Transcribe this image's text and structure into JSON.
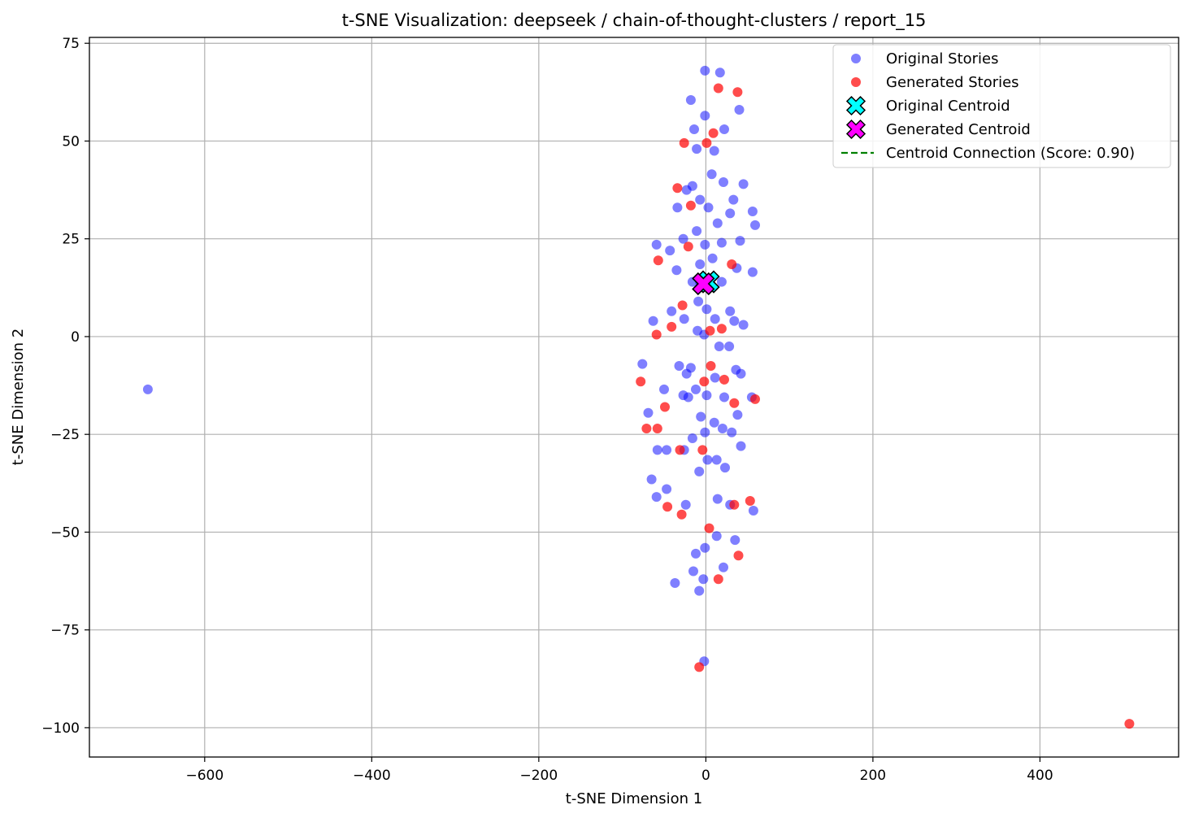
{
  "chart_data": {
    "type": "scatter",
    "title": "t-SNE Visualization: deepseek / chain-of-thought-clusters / report_15",
    "xlabel": "t-SNE Dimension 1",
    "ylabel": "t-SNE Dimension 2",
    "xlim": [
      -738,
      566
    ],
    "ylim": [
      -107.5,
      76.5
    ],
    "xticks": [
      -600,
      -400,
      -200,
      0,
      200,
      400
    ],
    "yticks": [
      -100,
      -75,
      -50,
      -25,
      0,
      25,
      50,
      75
    ],
    "xtick_labels": [
      "−600",
      "−400",
      "−200",
      "0",
      "200",
      "400"
    ],
    "ytick_labels": [
      "−100",
      "−75",
      "−50",
      "−25",
      "0",
      "25",
      "50",
      "75"
    ],
    "grid": true,
    "legend_position": "top-right",
    "series": [
      {
        "name": "Original Stories",
        "color": "#0000ff",
        "points": [
          [
            -1,
            68
          ],
          [
            17,
            67.5
          ],
          [
            -18,
            60.5
          ],
          [
            40,
            58
          ],
          [
            -1,
            56.5
          ],
          [
            -14,
            53
          ],
          [
            22,
            53
          ],
          [
            -11,
            48
          ],
          [
            10,
            47.5
          ],
          [
            7,
            41.5
          ],
          [
            -16,
            38.5
          ],
          [
            21,
            39.5
          ],
          [
            45,
            39
          ],
          [
            -23,
            37.5
          ],
          [
            -7,
            35
          ],
          [
            33,
            35
          ],
          [
            3,
            33
          ],
          [
            -34,
            33
          ],
          [
            56,
            32
          ],
          [
            29,
            31.5
          ],
          [
            14,
            29
          ],
          [
            59,
            28.5
          ],
          [
            -11,
            27
          ],
          [
            -27,
            25
          ],
          [
            41,
            24.5
          ],
          [
            -59,
            23.5
          ],
          [
            19,
            24
          ],
          [
            -1,
            23.5
          ],
          [
            -43,
            22
          ],
          [
            8,
            20
          ],
          [
            -7,
            18.5
          ],
          [
            -35,
            17
          ],
          [
            37,
            17.5
          ],
          [
            56,
            16.5
          ],
          [
            -16,
            14
          ],
          [
            -7,
            14
          ],
          [
            19,
            14
          ],
          [
            -9,
            9
          ],
          [
            29,
            6.5
          ],
          [
            -41,
            6.5
          ],
          [
            1,
            7
          ],
          [
            -63,
            4
          ],
          [
            -26,
            4.5
          ],
          [
            11,
            4.5
          ],
          [
            34,
            4
          ],
          [
            45,
            3
          ],
          [
            -10,
            1.5
          ],
          [
            -2,
            0.5
          ],
          [
            16,
            -2.5
          ],
          [
            28,
            -2.5
          ],
          [
            -76,
            -7
          ],
          [
            -32,
            -7.5
          ],
          [
            -18,
            -8
          ],
          [
            36,
            -8.5
          ],
          [
            42,
            -9.5
          ],
          [
            -23,
            -9.5
          ],
          [
            11,
            -10.5
          ],
          [
            -50,
            -13.5
          ],
          [
            -12,
            -13.5
          ],
          [
            -27,
            -15
          ],
          [
            1,
            -15
          ],
          [
            -21,
            -15.5
          ],
          [
            22,
            -15.5
          ],
          [
            55,
            -15.5
          ],
          [
            -69,
            -19.5
          ],
          [
            38,
            -20
          ],
          [
            -6,
            -20.5
          ],
          [
            10,
            -22
          ],
          [
            -1,
            -24.5
          ],
          [
            20,
            -23.5
          ],
          [
            31,
            -24.5
          ],
          [
            -16,
            -26
          ],
          [
            -58,
            -29
          ],
          [
            -47,
            -29
          ],
          [
            -26,
            -29
          ],
          [
            42,
            -28
          ],
          [
            2,
            -31.5
          ],
          [
            13,
            -31.5
          ],
          [
            23,
            -33.5
          ],
          [
            -8,
            -34.5
          ],
          [
            -65,
            -36.5
          ],
          [
            -47,
            -39
          ],
          [
            -59,
            -41
          ],
          [
            14,
            -41.5
          ],
          [
            -24,
            -43
          ],
          [
            29,
            -43
          ],
          [
            57,
            -44.5
          ],
          [
            13,
            -51
          ],
          [
            35,
            -52
          ],
          [
            -1,
            -54
          ],
          [
            -12,
            -55.5
          ],
          [
            21,
            -59
          ],
          [
            -15,
            -60
          ],
          [
            -3,
            -62
          ],
          [
            -37,
            -63
          ],
          [
            -8,
            -65
          ],
          [
            -2,
            -83
          ],
          [
            -668,
            -13.5
          ]
        ]
      },
      {
        "name": "Generated Stories",
        "color": "#ff0000",
        "points": [
          [
            15,
            63.5
          ],
          [
            38,
            62.5
          ],
          [
            9,
            52
          ],
          [
            -26,
            49.5
          ],
          [
            1,
            49.5
          ],
          [
            -34,
            38
          ],
          [
            -18,
            33.5
          ],
          [
            -21,
            23
          ],
          [
            -57,
            19.5
          ],
          [
            31,
            18.5
          ],
          [
            -28,
            8
          ],
          [
            -41,
            2.5
          ],
          [
            -59,
            0.5
          ],
          [
            5,
            1.5
          ],
          [
            19,
            2
          ],
          [
            6,
            -7.5
          ],
          [
            22,
            -11
          ],
          [
            -2,
            -11.5
          ],
          [
            -78,
            -11.5
          ],
          [
            34,
            -17
          ],
          [
            59,
            -16
          ],
          [
            -49,
            -18
          ],
          [
            -71,
            -23.5
          ],
          [
            -58,
            -23.5
          ],
          [
            -31,
            -29
          ],
          [
            -4,
            -29
          ],
          [
            53,
            -42
          ],
          [
            34,
            -43
          ],
          [
            -46,
            -43.5
          ],
          [
            -29,
            -45.5
          ],
          [
            4,
            -49
          ],
          [
            39,
            -56
          ],
          [
            15,
            -62
          ],
          [
            -8,
            -84.5
          ],
          [
            507,
            -99
          ]
        ]
      }
    ],
    "centroids": [
      {
        "name": "Original Centroid",
        "color": "#00ffff",
        "x": 3,
        "y": 14
      },
      {
        "name": "Generated Centroid",
        "color": "#ff00ff",
        "x": -3,
        "y": 13.5
      }
    ],
    "connection": {
      "name": "Centroid Connection (Score: 0.90)",
      "color": "#008000"
    }
  }
}
